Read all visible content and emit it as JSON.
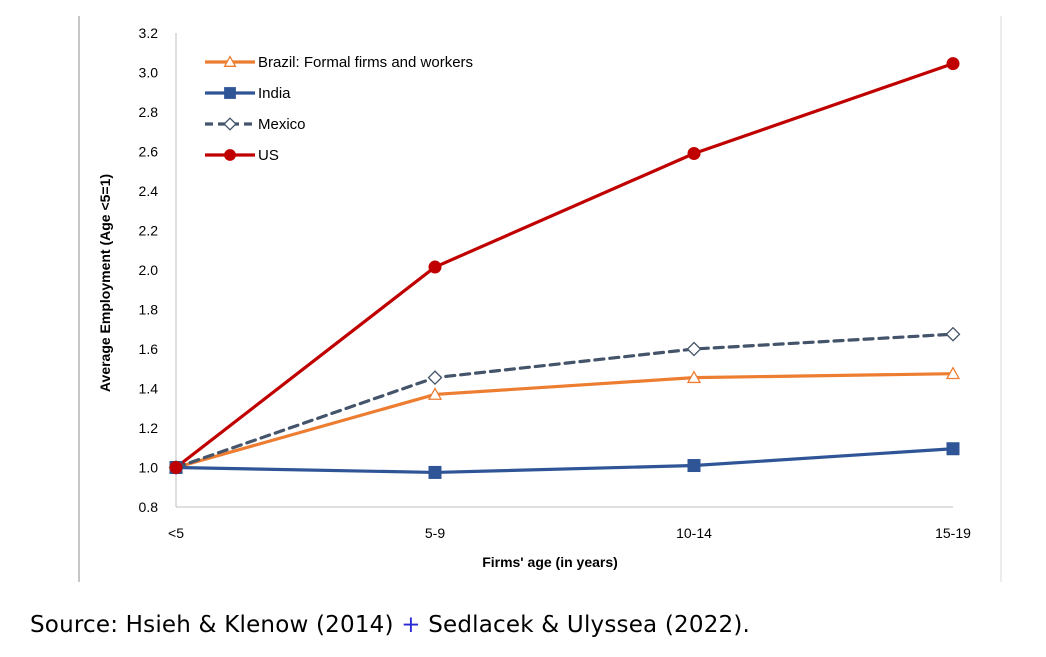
{
  "chart_data": {
    "type": "line",
    "title": "",
    "xlabel": "Firms' age (in years)",
    "ylabel": "Average Employment (Age <5=1)",
    "categories": [
      "<5",
      "5-9",
      "10-14",
      "15-19"
    ],
    "ylim": [
      0.8,
      3.2
    ],
    "yticks": [
      "0.8",
      "1.0",
      "1.2",
      "1.4",
      "1.6",
      "1.8",
      "2.0",
      "2.2",
      "2.4",
      "2.6",
      "2.8",
      "3.0",
      "3.2"
    ],
    "grid": false,
    "legend_position": "top-left",
    "series": [
      {
        "name": "Brazil: Formal firms and workers",
        "values": [
          1.0,
          1.37,
          1.455,
          1.475
        ],
        "color": "#ed7d31",
        "line_style": "solid",
        "marker": "triangle-open"
      },
      {
        "name": "India",
        "values": [
          1.0,
          0.975,
          1.01,
          1.095
        ],
        "color": "#2f5597",
        "line_style": "solid",
        "marker": "square-filled"
      },
      {
        "name": "Mexico",
        "values": [
          1.0,
          1.455,
          1.6,
          1.675
        ],
        "color": "#44546a",
        "line_style": "dashed",
        "marker": "diamond-open"
      },
      {
        "name": "US",
        "values": [
          1.0,
          2.015,
          2.59,
          3.045
        ],
        "color": "#c00000",
        "line_style": "solid",
        "marker": "circle-filled"
      }
    ]
  },
  "source": {
    "prefix": "Source: Hsieh & Klenow (2014)",
    "plus": "+",
    "suffix": "Sedlacek & Ulyssea (2022)."
  }
}
